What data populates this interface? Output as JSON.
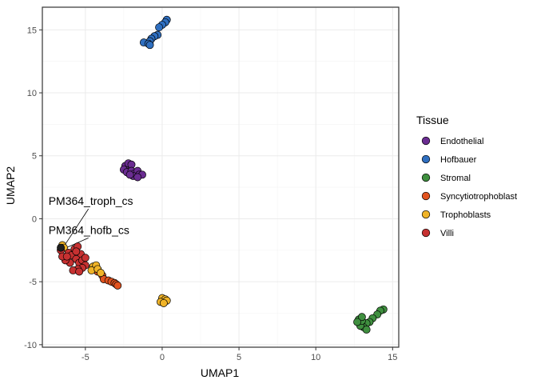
{
  "chart_data": {
    "type": "scatter",
    "title": "",
    "xlabel": "UMAP1",
    "ylabel": "UMAP2",
    "xlim": [
      -7.8,
      15.4
    ],
    "ylim": [
      -10.2,
      16.8
    ],
    "xticks": [
      -5,
      0,
      5,
      10,
      15
    ],
    "yticks": [
      -10,
      -5,
      0,
      5,
      10,
      15
    ],
    "grid": true,
    "legend": {
      "title": "Tissue",
      "position": "right"
    },
    "series": [
      {
        "name": "Endothelial",
        "color": "#6A2C91",
        "points": [
          [
            -2.4,
            4.2
          ],
          [
            -2.2,
            4.4
          ],
          [
            -2.0,
            4.3
          ],
          [
            -2.5,
            3.9
          ],
          [
            -2.3,
            3.7
          ],
          [
            -2.0,
            3.8
          ],
          [
            -1.8,
            3.6
          ],
          [
            -1.6,
            3.8
          ],
          [
            -1.5,
            3.5
          ],
          [
            -1.3,
            3.5
          ],
          [
            -1.9,
            3.4
          ],
          [
            -1.6,
            3.3
          ],
          [
            -2.1,
            3.5
          ]
        ]
      },
      {
        "name": "Hofbauer",
        "color": "#2F6FC0",
        "points": [
          [
            0.3,
            15.8
          ],
          [
            0.2,
            15.6
          ],
          [
            0.0,
            15.4
          ],
          [
            -0.2,
            15.2
          ],
          [
            -0.3,
            14.6
          ],
          [
            -0.5,
            14.5
          ],
          [
            -0.7,
            14.3
          ],
          [
            -0.8,
            14.1
          ],
          [
            -1.2,
            14.0
          ],
          [
            -0.9,
            13.9
          ],
          [
            -0.8,
            13.8
          ]
        ]
      },
      {
        "name": "Stromal",
        "color": "#3F8F3F",
        "points": [
          [
            14.4,
            -7.2
          ],
          [
            14.2,
            -7.3
          ],
          [
            14.0,
            -7.6
          ],
          [
            13.7,
            -7.9
          ],
          [
            13.5,
            -8.2
          ],
          [
            13.3,
            -8.3
          ],
          [
            13.1,
            -8.6
          ],
          [
            12.9,
            -8.5
          ],
          [
            12.8,
            -8.0
          ],
          [
            13.0,
            -8.1
          ],
          [
            13.0,
            -7.8
          ],
          [
            12.7,
            -8.2
          ],
          [
            13.3,
            -8.8
          ]
        ]
      },
      {
        "name": "Syncytiotrophoblast",
        "color": "#E2531F",
        "points": [
          [
            -3.9,
            -4.5
          ],
          [
            -3.8,
            -4.8
          ],
          [
            -3.5,
            -4.9
          ],
          [
            -3.3,
            -5.0
          ],
          [
            -3.1,
            -5.1
          ],
          [
            -3.0,
            -5.2
          ],
          [
            -2.9,
            -5.3
          ],
          [
            -4.2,
            -4.2
          ]
        ]
      },
      {
        "name": "Trophoblasts",
        "color": "#F0B428",
        "points": [
          [
            -4.5,
            -3.8
          ],
          [
            -4.3,
            -3.7
          ],
          [
            -4.6,
            -4.1
          ],
          [
            -4.2,
            -4.0
          ],
          [
            -4.0,
            -4.3
          ],
          [
            0.0,
            -6.3
          ],
          [
            0.2,
            -6.4
          ],
          [
            -0.1,
            -6.6
          ],
          [
            0.3,
            -6.5
          ],
          [
            0.1,
            -6.7
          ],
          [
            -6.5,
            -2.1
          ],
          [
            -6.4,
            -2.3
          ]
        ]
      },
      {
        "name": "Villi",
        "color": "#C63131",
        "points": [
          [
            -6.6,
            -2.5
          ],
          [
            -6.1,
            -2.7
          ],
          [
            -5.9,
            -2.9
          ],
          [
            -5.7,
            -2.4
          ],
          [
            -5.5,
            -2.2
          ],
          [
            -5.3,
            -2.8
          ],
          [
            -5.6,
            -3.2
          ],
          [
            -5.4,
            -3.5
          ],
          [
            -5.2,
            -3.3
          ],
          [
            -5.0,
            -3.1
          ],
          [
            -5.0,
            -3.7
          ],
          [
            -5.2,
            -3.9
          ],
          [
            -5.5,
            -4.0
          ],
          [
            -5.8,
            -4.1
          ],
          [
            -5.4,
            -4.2
          ],
          [
            -6.0,
            -3.5
          ],
          [
            -6.3,
            -3.3
          ],
          [
            -6.5,
            -3.0
          ],
          [
            -6.2,
            -3.0
          ],
          [
            -5.6,
            -2.6
          ]
        ]
      },
      {
        "name": "",
        "color": "#1f1f1f",
        "legend": false,
        "points": [
          [
            -6.6,
            -2.3
          ]
        ]
      }
    ],
    "annotations": [
      {
        "text": "PM364_troph_cs",
        "x": -7.4,
        "y": 1.1,
        "target": [
          -6.4,
          -2.2
        ]
      },
      {
        "text": "PM364_hofb_cs",
        "x": -7.4,
        "y": -1.2,
        "target": [
          -6.6,
          -2.5
        ]
      }
    ]
  }
}
